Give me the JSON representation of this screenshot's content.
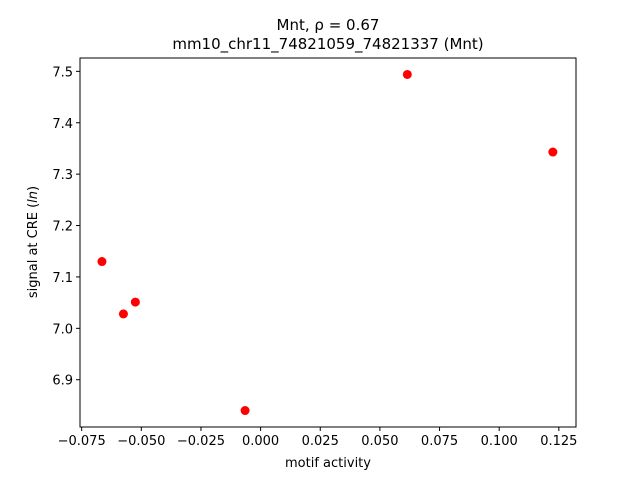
{
  "chart_data": {
    "type": "scatter",
    "title_line1": "Mnt, ρ = 0.67",
    "title_line2": "mm10_chr11_74821059_74821337 (Mnt)",
    "xlabel": "motif activity",
    "ylabel_prefix": "signal at CRE (",
    "ylabel_italic": "ln",
    "ylabel_suffix": ")",
    "xlim": [
      -0.0757,
      0.1322
    ],
    "ylim": [
      6.808,
      7.526
    ],
    "grid": false,
    "point_color": "#ff0000",
    "x": [
      -0.0665,
      -0.0575,
      -0.0525,
      -0.0065,
      0.0615,
      0.1225
    ],
    "y": [
      7.13,
      7.028,
      7.051,
      6.84,
      7.494,
      7.343
    ],
    "x_ticks": [
      -0.075,
      -0.05,
      -0.025,
      0.0,
      0.025,
      0.05,
      0.075,
      0.1,
      0.125
    ],
    "x_tick_labels": [
      "−0.075",
      "−0.050",
      "−0.025",
      "0.000",
      "0.025",
      "0.050",
      "0.075",
      "0.100",
      "0.125"
    ],
    "y_ticks": [
      6.9,
      7.0,
      7.1,
      7.2,
      7.3,
      7.4,
      7.5
    ],
    "y_tick_labels": [
      "6.9",
      "7.0",
      "7.1",
      "7.2",
      "7.3",
      "7.4",
      "7.5"
    ]
  }
}
